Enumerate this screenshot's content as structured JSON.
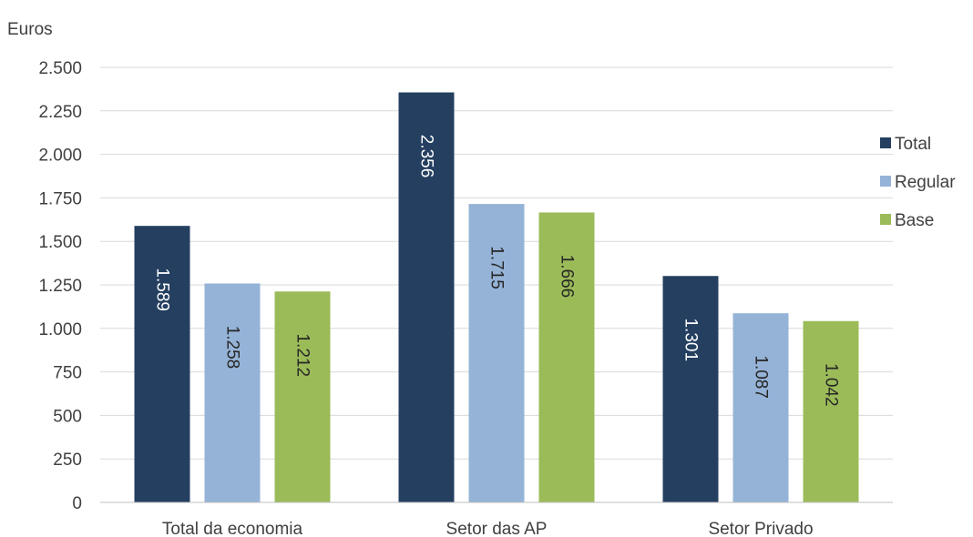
{
  "chart_data": {
    "type": "bar",
    "unit_label": "Euros",
    "categories": [
      "Total da economia",
      "Setor das AP",
      "Setor Privado"
    ],
    "series": [
      {
        "name": "Total",
        "values": [
          1589,
          2356,
          1301
        ],
        "labels": [
          "1.589",
          "2.356",
          "1.301"
        ],
        "color": "#243f60",
        "label_color": "#ffffff"
      },
      {
        "name": "Regular",
        "values": [
          1258,
          1715,
          1087
        ],
        "labels": [
          "1.258",
          "1.715",
          "1.087"
        ],
        "color": "#95b3d7",
        "label_color": "#262626"
      },
      {
        "name": "Base",
        "values": [
          1212,
          1666,
          1042
        ],
        "labels": [
          "1.212",
          "1.666",
          "1.042"
        ],
        "color": "#9bbb59",
        "label_color": "#262626"
      }
    ],
    "ylim": [
      0,
      2500
    ],
    "yticks": [
      0,
      250,
      500,
      750,
      1000,
      1250,
      1500,
      1750,
      2000,
      2250,
      2500
    ],
    "ytick_labels": [
      "0",
      "250",
      "500",
      "750",
      "1.000",
      "1.250",
      "1.500",
      "1.750",
      "2.000",
      "2.250",
      "2.500"
    ],
    "grid": true,
    "legend_position": "right"
  }
}
